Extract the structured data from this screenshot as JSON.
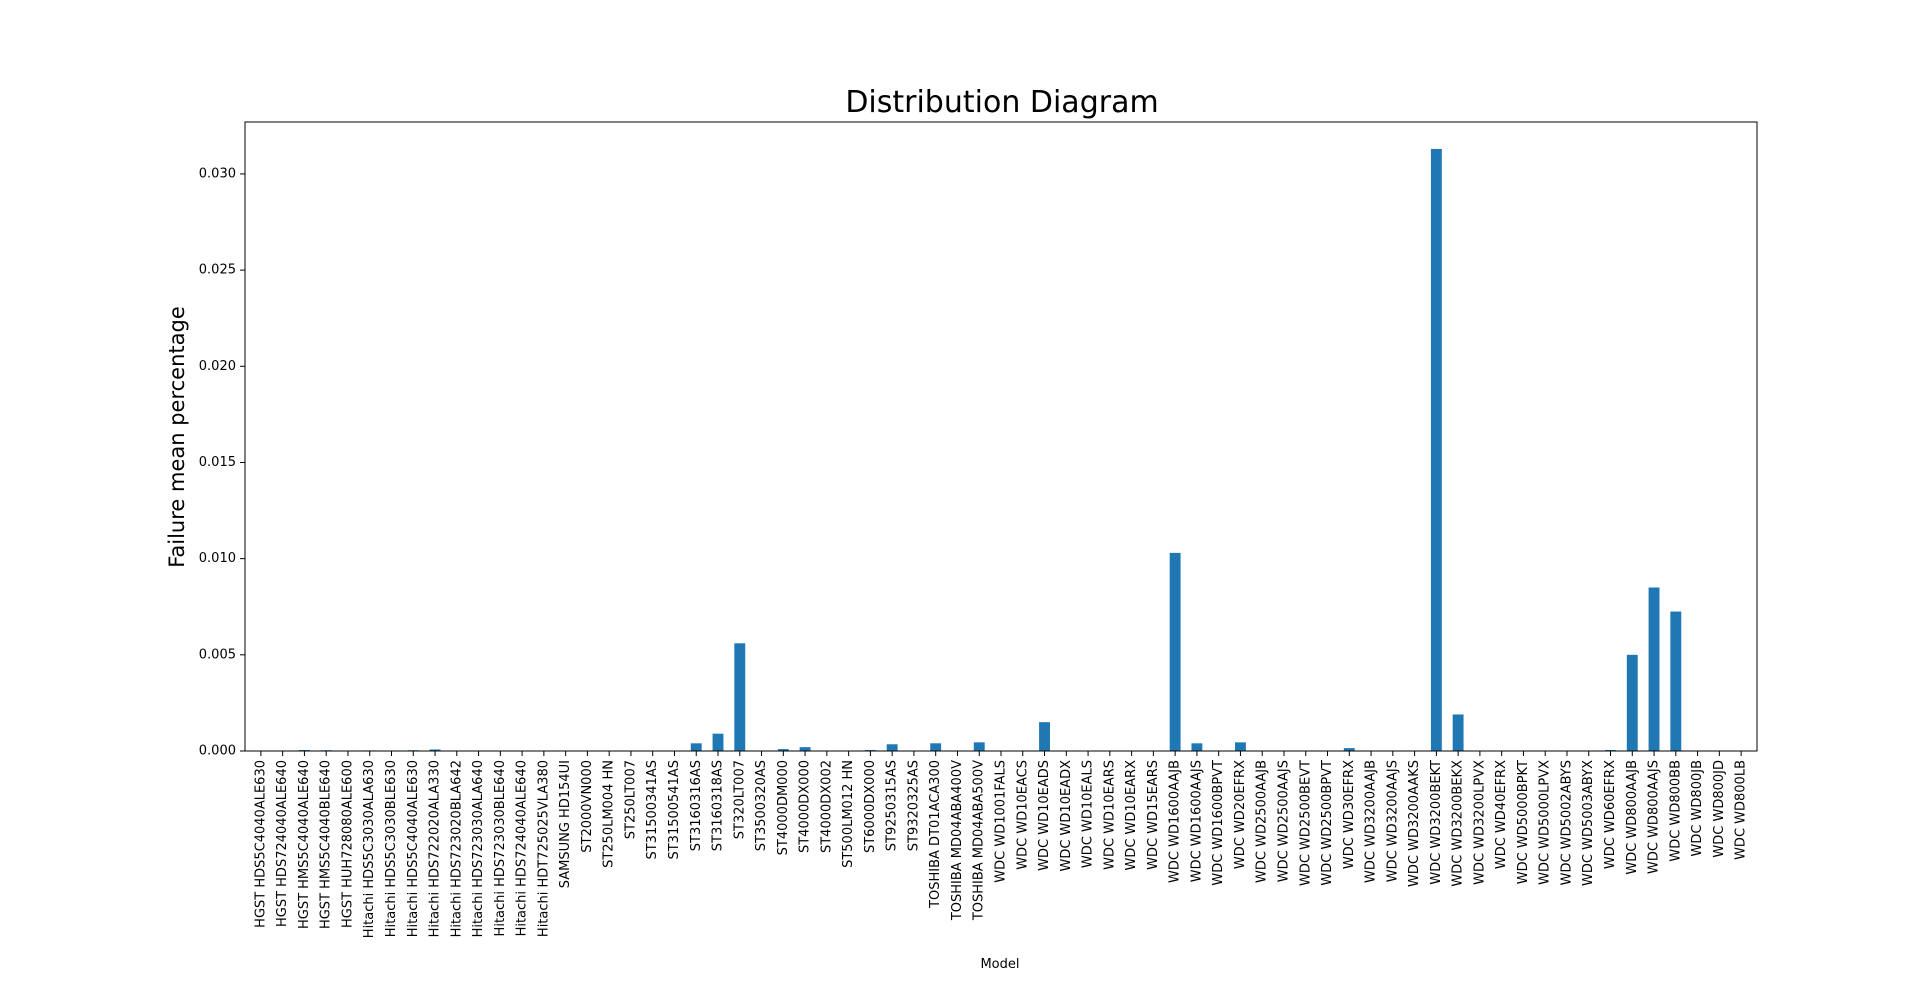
{
  "chart_data": {
    "type": "bar",
    "title": "Distribution Diagram",
    "xlabel": "Model",
    "ylabel": "Failure mean percentage",
    "ylim": [
      0,
      0.0327
    ],
    "yticks": [
      "0.000",
      "0.005",
      "0.010",
      "0.015",
      "0.020",
      "0.025",
      "0.030"
    ],
    "grid": false,
    "legend": "none",
    "bar_color": "#1f77b4",
    "categories": [
      "HGST HDS5C4040ALE630",
      "HGST HDS724040ALE640",
      "HGST HMS5C4040ALE640",
      "HGST HMS5C4040BLE640",
      "HGST HUH728080ALE600",
      "Hitachi HDS5C3030ALA630",
      "Hitachi HDS5C3030BLE630",
      "Hitachi HDS5C4040ALE630",
      "Hitachi HDS722020ALA330",
      "Hitachi HDS723020BLA642",
      "Hitachi HDS723030ALA640",
      "Hitachi HDS723030BLE640",
      "Hitachi HDS724040ALE640",
      "Hitachi HDT725025VLA380",
      "SAMSUNG HD154UI",
      "ST2000VN000",
      "ST250LM004 HN",
      "ST250LT007",
      "ST31500341AS",
      "ST31500541AS",
      "ST3160316AS",
      "ST3160318AS",
      "ST320LT007",
      "ST3500320AS",
      "ST4000DM000",
      "ST4000DX000",
      "ST4000DX002",
      "ST500LM012 HN",
      "ST6000DX000",
      "ST9250315AS",
      "ST9320325AS",
      "TOSHIBA DT01ACA300",
      "TOSHIBA MD04ABA400V",
      "TOSHIBA MD04ABA500V",
      "WDC WD1001FALS",
      "WDC WD10EACS",
      "WDC WD10EADS",
      "WDC WD10EADX",
      "WDC WD10EALS",
      "WDC WD10EARS",
      "WDC WD10EARX",
      "WDC WD15EARS",
      "WDC WD1600AAJB",
      "WDC WD1600AAJS",
      "WDC WD1600BPVT",
      "WDC WD20EFRX",
      "WDC WD2500AAJB",
      "WDC WD2500AAJS",
      "WDC WD2500BEVT",
      "WDC WD2500BPVT",
      "WDC WD30EFRX",
      "WDC WD3200AAJB",
      "WDC WD3200AAJS",
      "WDC WD3200AAKS",
      "WDC WD3200BEKT",
      "WDC WD3200BEKX",
      "WDC WD3200LPVX",
      "WDC WD40EFRX",
      "WDC WD5000BPKT",
      "WDC WD5000LPVX",
      "WDC WD5002ABYS",
      "WDC WD5003ABYX",
      "WDC WD60EFRX",
      "WDC WD800AAJB",
      "WDC WD800AAJS",
      "WDC WD800BB",
      "WDC WD800JB",
      "WDC WD800JD",
      "WDC WD800LB"
    ],
    "values": [
      0,
      2e-05,
      5e-05,
      4e-05,
      0,
      3e-05,
      2e-05,
      4e-05,
      8e-05,
      2e-05,
      1e-05,
      1e-05,
      1e-05,
      0,
      1e-05,
      0,
      0,
      0,
      0,
      0,
      0.0004,
      0.0009,
      0.0056,
      0,
      0.0001,
      0.0002,
      0,
      0,
      5e-05,
      0.00035,
      0,
      0.0004,
      0,
      0.00045,
      0,
      0,
      0.0015,
      0,
      0,
      0,
      0,
      0,
      0.0103,
      0.0004,
      0,
      0.00045,
      0,
      0,
      0,
      0,
      0.00015,
      0,
      0,
      0,
      0.0313,
      0.0019,
      0,
      0,
      0,
      0,
      0,
      0,
      5e-05,
      0.005,
      0.0085,
      0.00725,
      0,
      0,
      0
    ]
  }
}
